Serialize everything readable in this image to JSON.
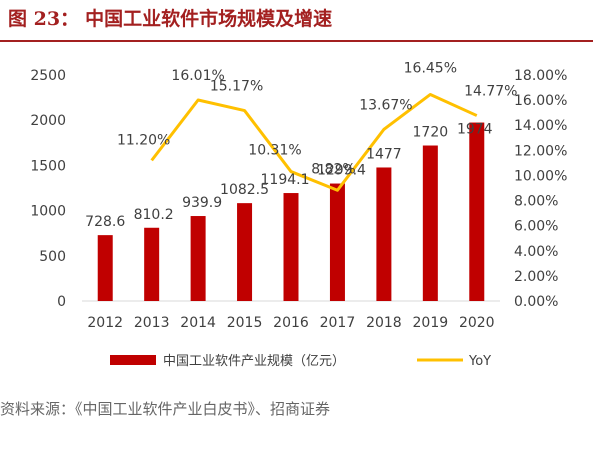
{
  "header": {
    "figure_number": "图 23：",
    "title": "中国工业软件市场规模及增速"
  },
  "chart_data": {
    "type": "bar",
    "categories": [
      "2012",
      "2013",
      "2014",
      "2015",
      "2016",
      "2017",
      "2018",
      "2019",
      "2020"
    ],
    "series": [
      {
        "name": "中国工业软件产业规模（亿元）",
        "type": "bar",
        "axis": "left",
        "values": [
          728.6,
          810.2,
          939.9,
          1082.5,
          1194.1,
          1299.4,
          1477,
          1720,
          1974
        ],
        "labels": [
          "728.6",
          "810.2",
          "939.9",
          "1082.5",
          "1194.1",
          "1299.4",
          "1477",
          "1720",
          "1974"
        ]
      },
      {
        "name": "YoY",
        "type": "line",
        "axis": "right",
        "values": [
          null,
          11.2,
          16.01,
          15.17,
          10.31,
          8.82,
          13.67,
          16.45,
          14.77
        ],
        "labels": [
          "",
          "11.20%",
          "16.01%",
          "15.17%",
          "10.31%",
          "8.82%",
          "13.67%",
          "16.45%",
          "14.77%"
        ]
      }
    ],
    "left_axis": {
      "ylim": [
        0,
        2500
      ],
      "ticks": [
        "0",
        "500",
        "1000",
        "1500",
        "2000",
        "2500"
      ]
    },
    "right_axis": {
      "ylim": [
        0,
        18
      ],
      "ticks": [
        "0.00%",
        "2.00%",
        "4.00%",
        "6.00%",
        "8.00%",
        "10.00%",
        "12.00%",
        "14.00%",
        "16.00%",
        "18.00%"
      ]
    },
    "legend_position": "bottom",
    "grid": false,
    "colors": {
      "bar": "#c00000",
      "line": "#ffc000"
    }
  },
  "footer": {
    "source": "资料来源：《中国工业软件产业白皮书》、招商证券"
  }
}
